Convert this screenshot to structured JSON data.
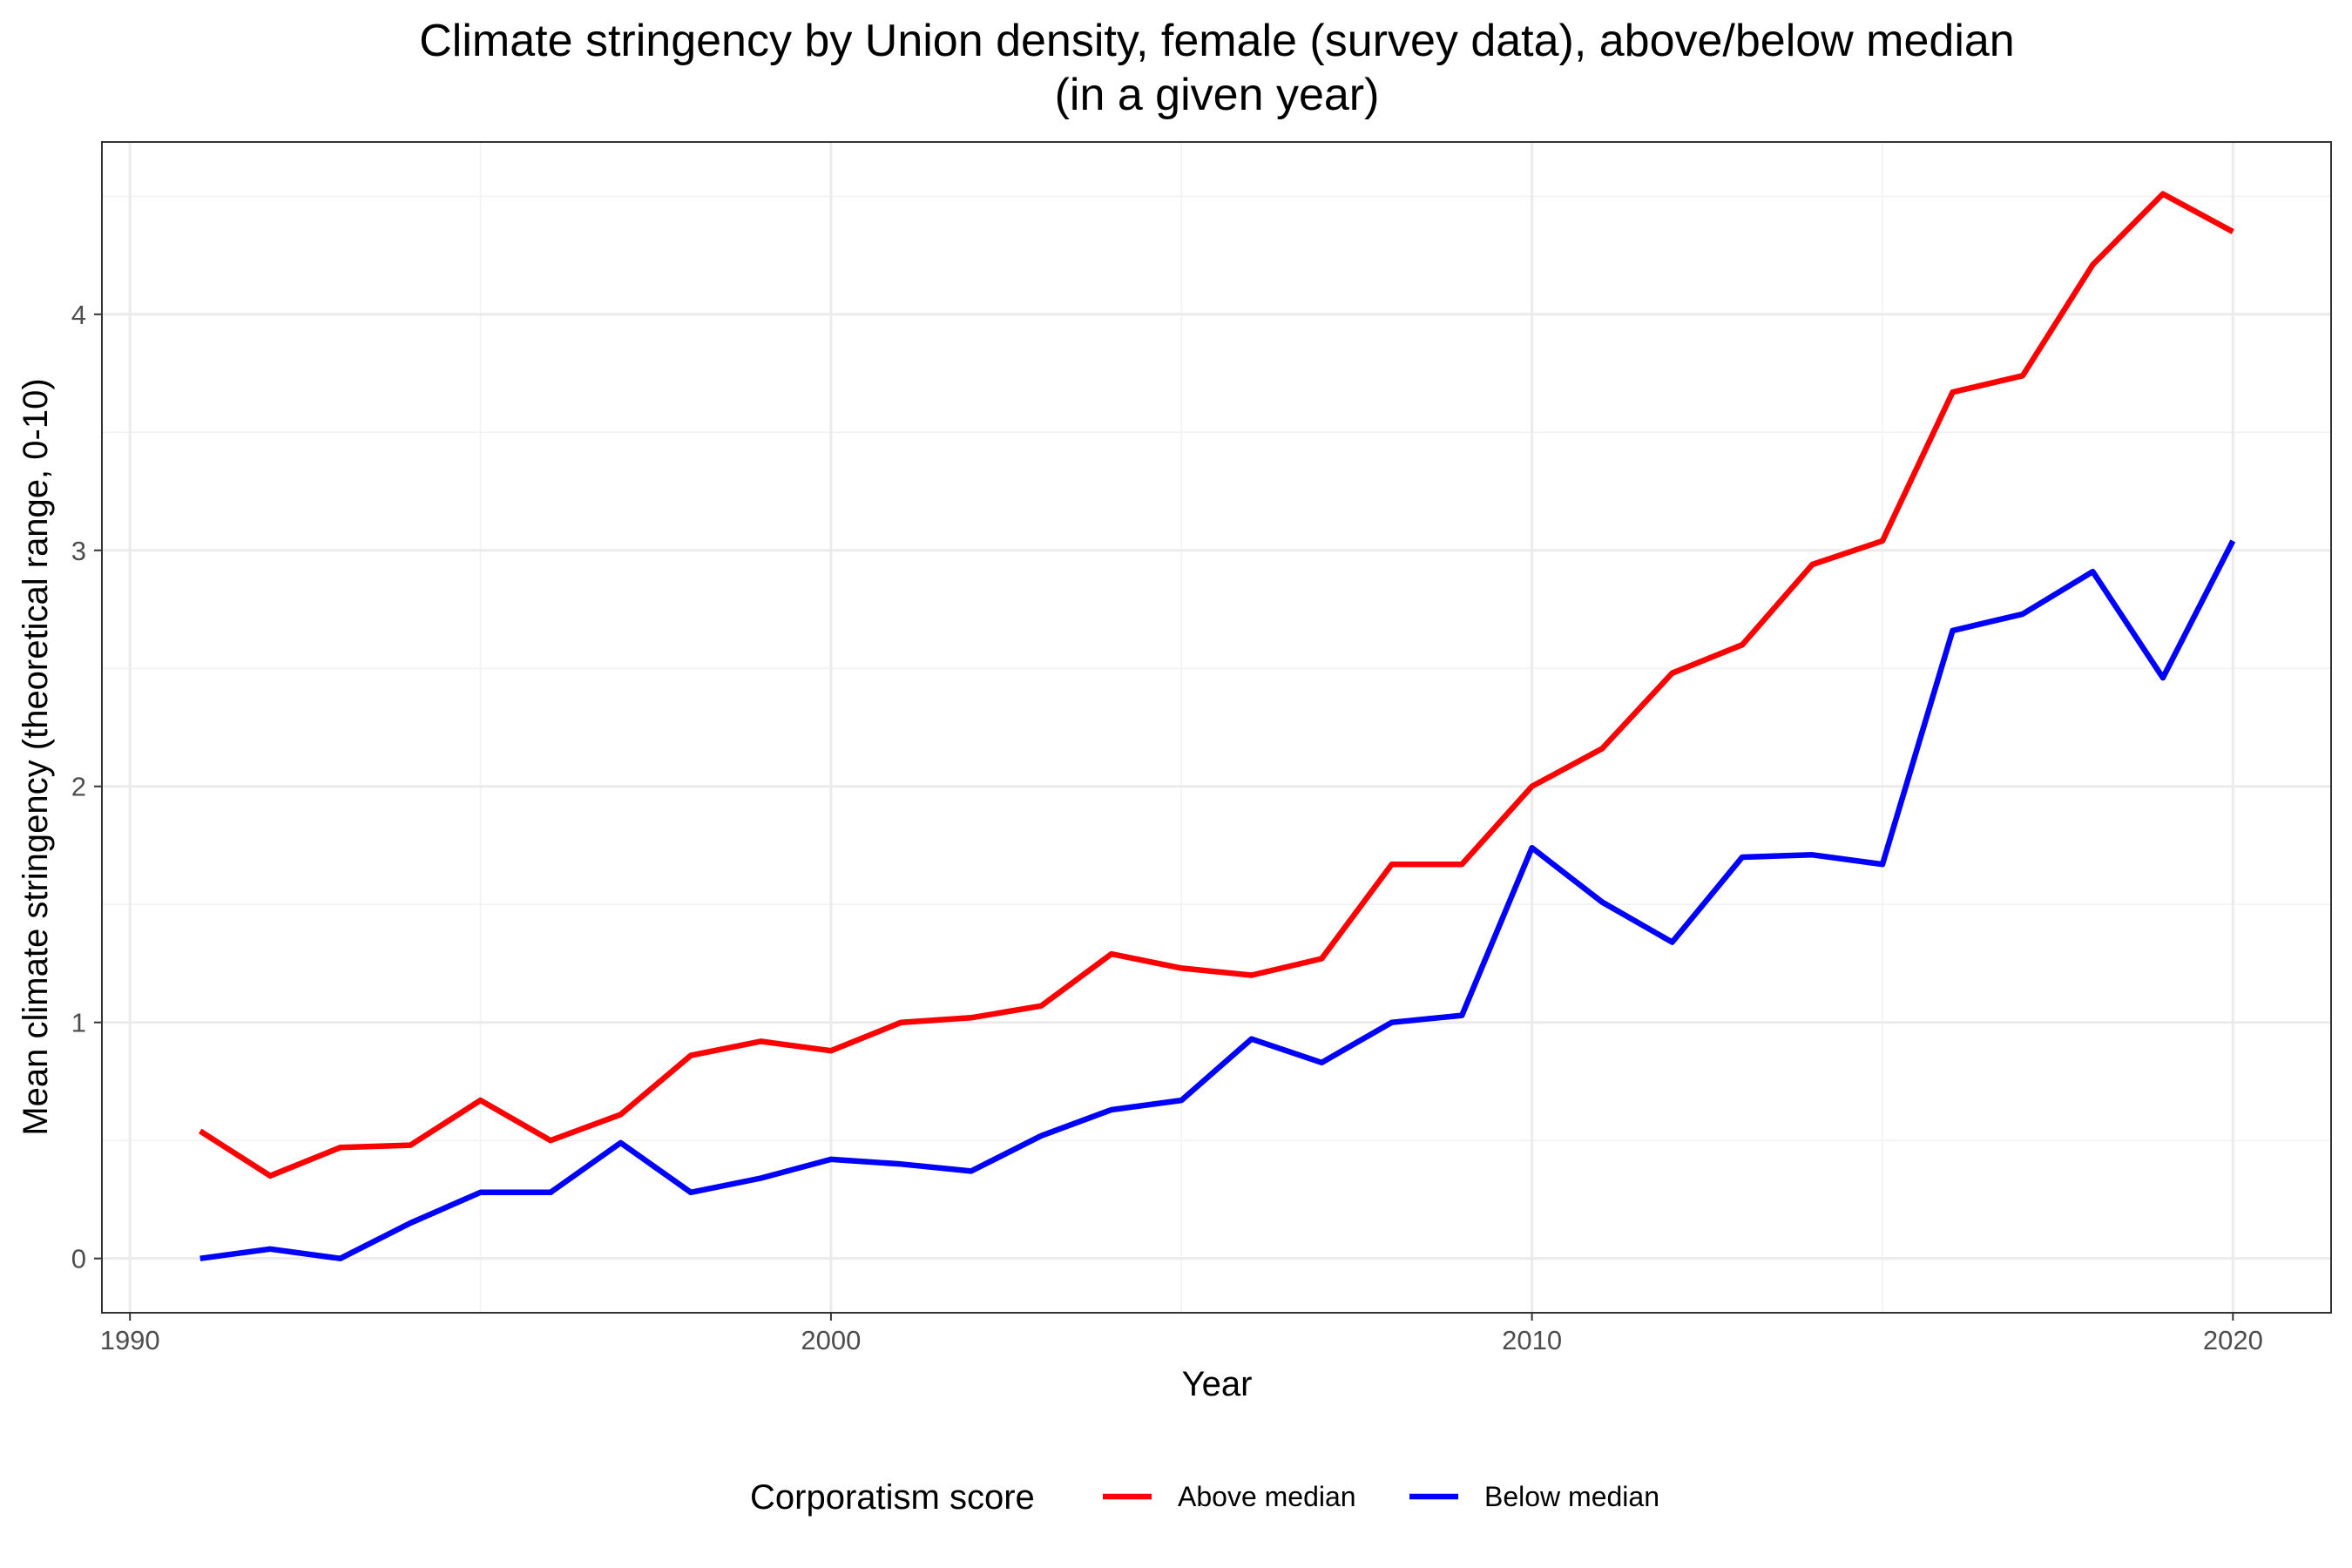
{
  "chart_data": {
    "type": "line",
    "title": "Climate stringency by Union density, female (survey data), above/below median",
    "subtitle": "(in a given year)",
    "xlabel": "Year",
    "ylabel": "Mean climate stringency (theoretical range, 0-10)",
    "xlim": [
      1989.6,
      2021.4
    ],
    "ylim": [
      -0.23,
      4.73
    ],
    "x_ticks": [
      1990,
      2000,
      2010,
      2020
    ],
    "y_ticks": [
      0,
      1,
      2,
      3,
      4
    ],
    "grid": true,
    "legend": {
      "title": "Corporatism score",
      "position": "bottom"
    },
    "x": [
      1991,
      1992,
      1993,
      1994,
      1995,
      1996,
      1997,
      1998,
      1999,
      2000,
      2001,
      2002,
      2003,
      2004,
      2005,
      2006,
      2007,
      2008,
      2009,
      2010,
      2011,
      2012,
      2013,
      2014,
      2015,
      2016,
      2017,
      2018,
      2019,
      2020
    ],
    "series": [
      {
        "name": "Above median",
        "color": "#ff0000",
        "values": [
          0.54,
          0.35,
          0.47,
          0.48,
          0.67,
          0.5,
          0.61,
          0.86,
          0.92,
          0.88,
          1.0,
          1.02,
          1.07,
          1.29,
          1.23,
          1.2,
          1.27,
          1.67,
          1.67,
          2.0,
          2.16,
          2.48,
          2.6,
          2.94,
          3.04,
          3.67,
          3.74,
          4.21,
          4.51,
          4.35
        ]
      },
      {
        "name": "Below median",
        "color": "#0000ff",
        "values": [
          0.0,
          0.04,
          0.0,
          0.15,
          0.28,
          0.28,
          0.49,
          0.28,
          0.34,
          0.42,
          0.4,
          0.37,
          0.52,
          0.63,
          0.67,
          0.93,
          0.83,
          1.0,
          1.03,
          1.74,
          1.51,
          1.34,
          1.7,
          1.71,
          1.67,
          2.66,
          2.73,
          2.91,
          2.46,
          3.04
        ]
      }
    ]
  }
}
